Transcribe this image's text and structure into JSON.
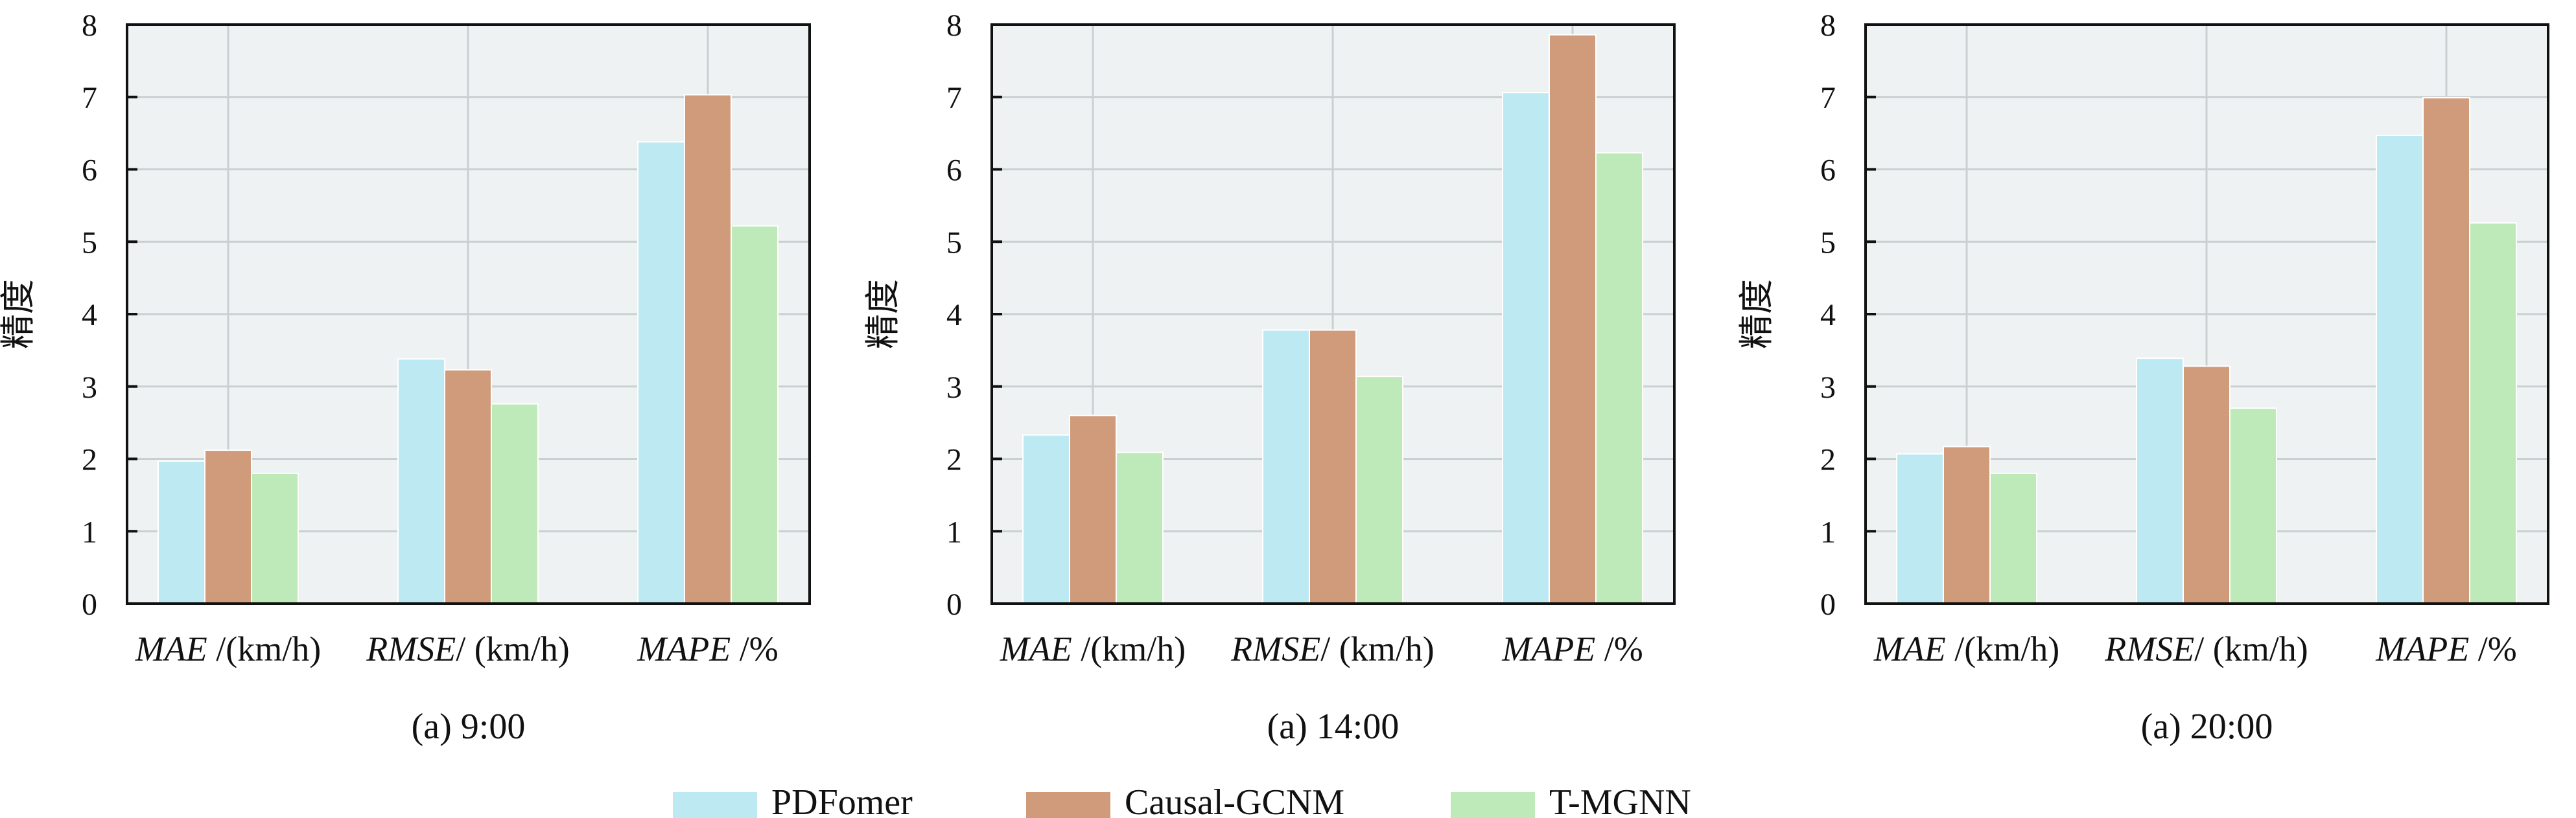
{
  "colors": {
    "series": [
      "#bde9f3",
      "#d09b7b",
      "#bdeab8"
    ],
    "plot_bg": "#eef2f3",
    "grid": "#c9d0d2",
    "axis": "#111111"
  },
  "legend": {
    "placement": "bottom-center",
    "items": [
      "PDFomer",
      "Causal-GCNM",
      "T-MGNN"
    ]
  },
  "chart_data": [
    {
      "type": "bar",
      "caption": "(a) 9:00",
      "ylabel": "精度",
      "ylim": [
        0,
        8
      ],
      "grid": true,
      "yticks": [
        "0",
        "1",
        "2",
        "3",
        "4",
        "5",
        "6",
        "7",
        "8"
      ],
      "categories": [
        {
          "metric": "MAE",
          "unit": " /(km/h)"
        },
        {
          "metric": "RMSE",
          "unit": "/ (km/h)"
        },
        {
          "metric": "MAPE",
          "unit": " /%"
        }
      ],
      "series": [
        {
          "name": "PDFomer",
          "values": [
            1.97,
            3.38,
            6.38
          ]
        },
        {
          "name": "Causal-GCNM",
          "values": [
            2.12,
            3.23,
            7.03
          ]
        },
        {
          "name": "T-MGNN",
          "values": [
            1.8,
            2.76,
            5.22
          ]
        }
      ]
    },
    {
      "type": "bar",
      "caption": "(a) 14:00",
      "ylabel": "精度",
      "ylim": [
        0,
        8
      ],
      "grid": true,
      "yticks": [
        "0",
        "1",
        "2",
        "3",
        "4",
        "5",
        "6",
        "7",
        "8"
      ],
      "categories": [
        {
          "metric": "MAE",
          "unit": " /(km/h)"
        },
        {
          "metric": "RMSE",
          "unit": "/ (km/h)"
        },
        {
          "metric": "MAPE",
          "unit": " /%"
        }
      ],
      "series": [
        {
          "name": "PDFomer",
          "values": [
            2.33,
            3.78,
            7.06
          ]
        },
        {
          "name": "Causal-GCNM",
          "values": [
            2.6,
            3.78,
            7.86
          ]
        },
        {
          "name": "T-MGNN",
          "values": [
            2.09,
            3.14,
            6.23
          ]
        }
      ]
    },
    {
      "type": "bar",
      "caption": "(a) 20:00",
      "ylabel": "精度",
      "ylim": [
        0,
        8
      ],
      "grid": true,
      "yticks": [
        "0",
        "1",
        "2",
        "3",
        "4",
        "5",
        "6",
        "7",
        "8"
      ],
      "categories": [
        {
          "metric": "MAE",
          "unit": " /(km/h)"
        },
        {
          "metric": "RMSE",
          "unit": "/ (km/h)"
        },
        {
          "metric": "MAPE",
          "unit": " /%"
        }
      ],
      "series": [
        {
          "name": "PDFomer",
          "values": [
            2.07,
            3.39,
            6.47
          ]
        },
        {
          "name": "Causal-GCNM",
          "values": [
            2.17,
            3.28,
            6.99
          ]
        },
        {
          "name": "T-MGNN",
          "values": [
            1.8,
            2.7,
            5.26
          ]
        }
      ]
    }
  ]
}
